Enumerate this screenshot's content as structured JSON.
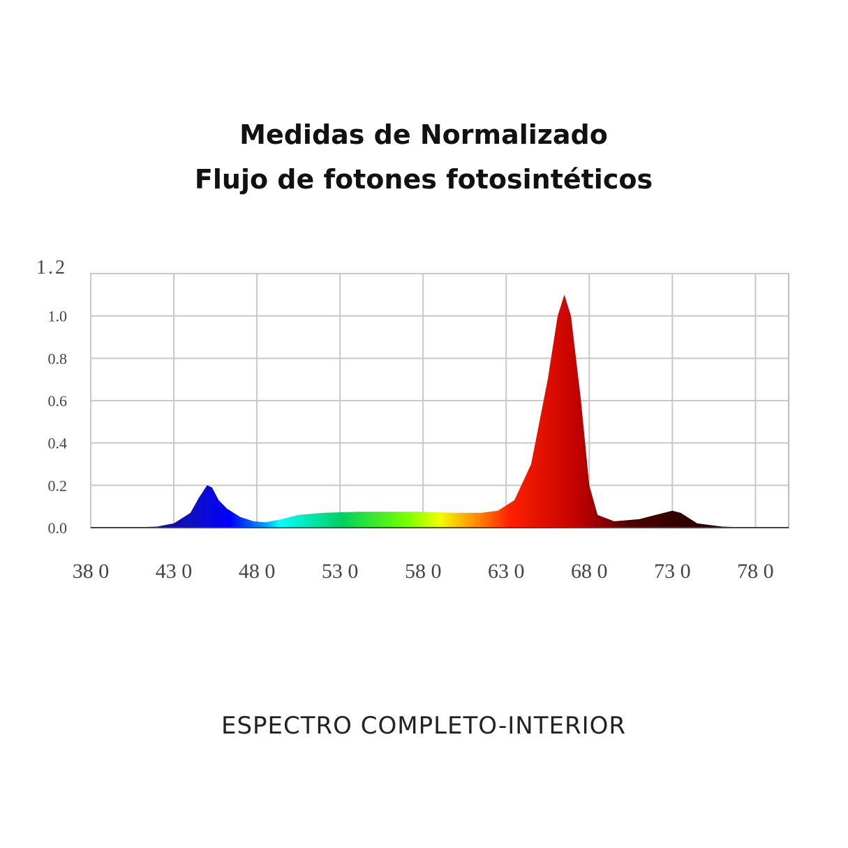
{
  "chart_data": {
    "type": "area",
    "title": [
      "Medidas de Normalizado",
      "Flujo de fotones fotosintéticos"
    ],
    "subtitle": "ESPECTRO COMPLETO-INTERIOR",
    "x": [
      380,
      400,
      420,
      430,
      440,
      445,
      450,
      453,
      457,
      462,
      470,
      478,
      485,
      495,
      505,
      520,
      540,
      560,
      580,
      600,
      615,
      625,
      635,
      645,
      655,
      661,
      665,
      669,
      675,
      680,
      685,
      695,
      710,
      720,
      730,
      735,
      745,
      760,
      780,
      800
    ],
    "values": [
      0,
      0,
      0.005,
      0.02,
      0.07,
      0.14,
      0.2,
      0.19,
      0.13,
      0.09,
      0.05,
      0.03,
      0.025,
      0.04,
      0.06,
      0.07,
      0.075,
      0.075,
      0.075,
      0.07,
      0.07,
      0.08,
      0.13,
      0.3,
      0.7,
      1.0,
      1.1,
      1.0,
      0.6,
      0.2,
      0.06,
      0.03,
      0.04,
      0.06,
      0.08,
      0.07,
      0.02,
      0.005,
      0,
      0
    ],
    "xlim": [
      380,
      800
    ],
    "ylim": [
      0,
      1.2
    ],
    "xticks": [
      {
        "value": 380,
        "label": "38 0"
      },
      {
        "value": 430,
        "label": "43 0"
      },
      {
        "value": 480,
        "label": "48 0"
      },
      {
        "value": 530,
        "label": "53 0"
      },
      {
        "value": 580,
        "label": "58 0"
      },
      {
        "value": 630,
        "label": "63 0"
      },
      {
        "value": 680,
        "label": "68 0"
      },
      {
        "value": 730,
        "label": "73 0"
      },
      {
        "value": 780,
        "label": "78 0"
      }
    ],
    "yticks": [
      {
        "value": 0,
        "label": "0.0"
      },
      0.2,
      0.4,
      0.6,
      0.8,
      {
        "value": 1,
        "label": "1.0"
      },
      1.2
    ],
    "grid": true
  }
}
